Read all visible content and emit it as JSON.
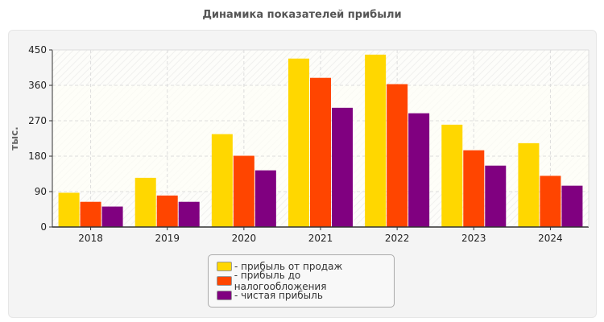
{
  "chart_data": {
    "type": "bar",
    "title": "Динамика показателей прибыли",
    "ylabel": "тыс.",
    "xlabel": "",
    "ylim": [
      0,
      450
    ],
    "yticks": [
      0,
      90,
      180,
      270,
      360,
      450
    ],
    "grid": true,
    "legend_placement": "bottom",
    "categories": [
      "2018",
      "2019",
      "2020",
      "2021",
      "2022",
      "2023",
      "2024"
    ],
    "series": [
      {
        "name": "прибыль от продаж",
        "color": "#FFD700",
        "values": [
          87,
          125,
          236,
          428,
          438,
          260,
          213
        ]
      },
      {
        "name": "прибыль до налогообложения",
        "color": "#FF4500",
        "values": [
          64,
          80,
          181,
          379,
          363,
          195,
          130
        ]
      },
      {
        "name": "чистая прибыль",
        "color": "#800080",
        "values": [
          52,
          64,
          144,
          303,
          289,
          156,
          105
        ]
      }
    ]
  }
}
